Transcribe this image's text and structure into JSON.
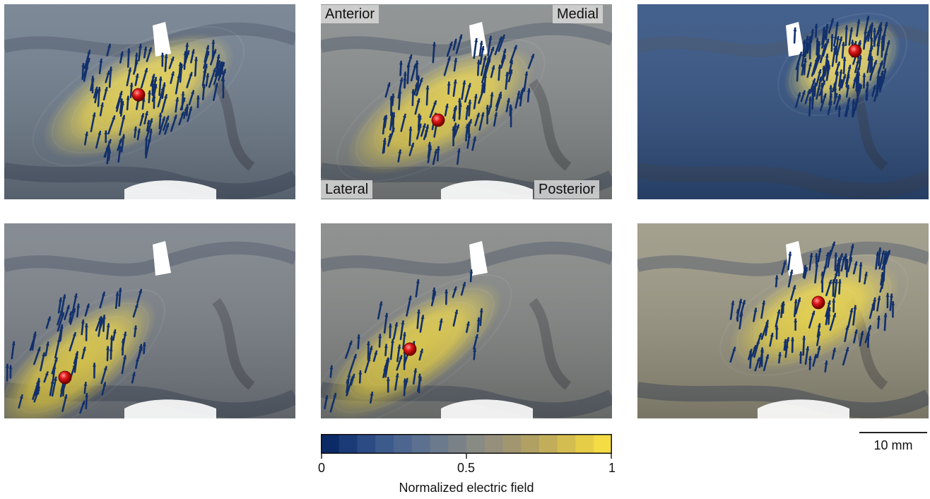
{
  "orientation_labels": {
    "anterior": "Anterior",
    "medial": "Medial",
    "lateral": "Lateral",
    "posterior": "Posterior"
  },
  "colorbar": {
    "ticks": [
      "0",
      "0.5",
      "1"
    ],
    "label": "Normalized electric field",
    "colors": [
      "#0b2a66",
      "#1b3b78",
      "#2c4b84",
      "#3c5a8c",
      "#4d6690",
      "#5c7090",
      "#6b7a8d",
      "#7a8288",
      "#888a84",
      "#958f7c",
      "#a29670",
      "#b0a064",
      "#c2ae5a",
      "#d4bd50",
      "#e6cd48",
      "#f4dc44"
    ]
  },
  "scale_bar": {
    "label": "10 mm"
  },
  "panels": [
    {
      "name": "panel-top-left",
      "surface": "#6f7c8c",
      "hotspot": "#f2dc52",
      "field_level": 0.95,
      "arrow_color": "#12306b"
    },
    {
      "name": "panel-top-center",
      "surface": "#868a8a",
      "hotspot": "#f0d94e",
      "field_level": 0.95,
      "arrow_color": "#12306b"
    },
    {
      "name": "panel-top-right",
      "surface": "#2f4f80",
      "hotspot": "#efd860",
      "field_level": 0.85,
      "arrow_color": "#12306b"
    },
    {
      "name": "panel-bottom-left",
      "surface": "#7a8088",
      "hotspot": "#f2db4c",
      "field_level": 0.95,
      "arrow_color": "#12306b"
    },
    {
      "name": "panel-bottom-center",
      "surface": "#838684",
      "hotspot": "#f1da4c",
      "field_level": 0.95,
      "arrow_color": "#12306b"
    },
    {
      "name": "panel-bottom-right",
      "surface": "#9a9682",
      "hotspot": "#f3dc48",
      "field_level": 0.95,
      "arrow_color": "#12306b"
    }
  ]
}
